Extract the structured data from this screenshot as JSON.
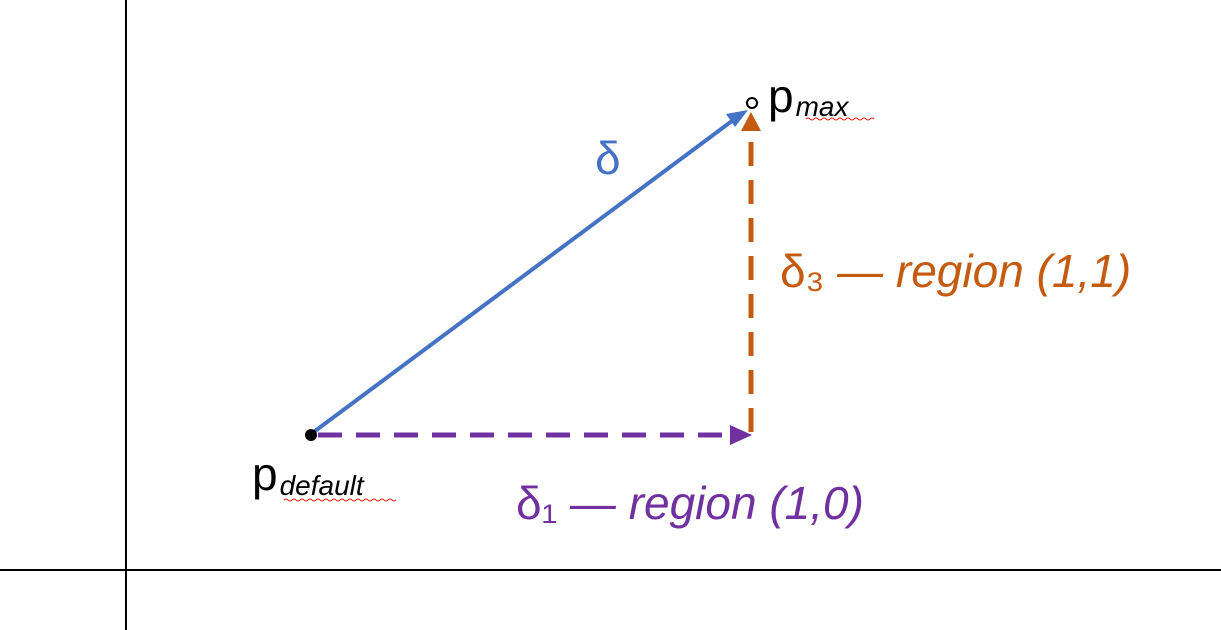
{
  "labels": {
    "delta": "δ",
    "p_max_base": "p",
    "p_max_sub": "max",
    "p_default_base": "p",
    "p_default_sub": "default",
    "delta3_symbol": "δ₃",
    "delta3_text": " — region (1,1)",
    "delta1_symbol": "δ₁",
    "delta1_text": " — region (1,0)"
  },
  "colors": {
    "blue": "#4472C4",
    "orange": "#C55A11",
    "purple": "#7030A0",
    "black": "#000000",
    "squiggle": "#E0201B"
  }
}
